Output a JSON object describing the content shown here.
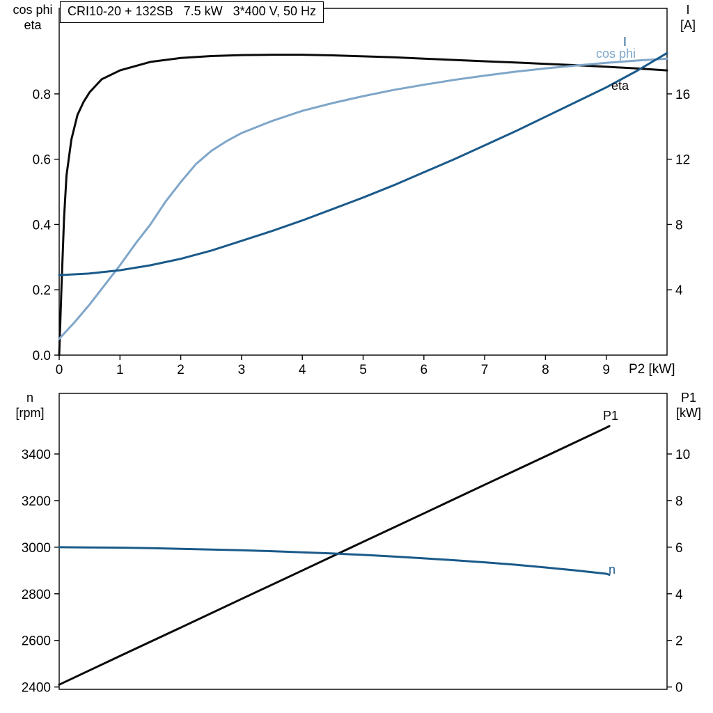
{
  "title_box": {
    "text": "CRI10-20 + 132SB   7.5 kW   3*400 V, 50 Hz"
  },
  "colors": {
    "black": "#0a0a0a",
    "dark_blue": "#1a5a8a",
    "light_blue": "#7fa6c9"
  },
  "axis_labels": {
    "top_left_1": "cos phi",
    "top_left_2": "eta",
    "top_right_1": "I",
    "top_right_2": "[A]",
    "x_label_top": "P2 [kW]",
    "bottom_left_1": "n",
    "bottom_left_2": "[rpm]",
    "bottom_right_1": "P1",
    "bottom_right_2": "[kW]"
  },
  "curve_labels": {
    "I": "I",
    "cos_phi": "cos phi",
    "eta": "eta",
    "P1": "P1",
    "n": "n"
  },
  "chart_data": [
    {
      "type": "line",
      "id": "top",
      "title": "CRI10-20 + 132SB   7.5 kW   3*400 V, 50 Hz",
      "xlabel": "P2 [kW]",
      "ylabel_left": "cos phi / eta",
      "ylabel_right": "I [A]",
      "xlim": [
        0,
        10
      ],
      "ylim_left": [
        0,
        1.062
      ],
      "ylim_right": [
        0,
        21.24
      ],
      "grid": false,
      "legend_position": "curve-end-labels-right",
      "x_ticks": [
        {
          "v": 0,
          "t": "0"
        },
        {
          "v": 1,
          "t": "1"
        },
        {
          "v": 2,
          "t": "2"
        },
        {
          "v": 3,
          "t": "3"
        },
        {
          "v": 4,
          "t": "4"
        },
        {
          "v": 5,
          "t": "5"
        },
        {
          "v": 6,
          "t": "6"
        },
        {
          "v": 7,
          "t": "7"
        },
        {
          "v": 8,
          "t": "8"
        },
        {
          "v": 9,
          "t": "9"
        }
      ],
      "y_ticks_left": [
        {
          "v": 0.0,
          "t": "0.0"
        },
        {
          "v": 0.2,
          "t": "0.2"
        },
        {
          "v": 0.4,
          "t": "0.4"
        },
        {
          "v": 0.6,
          "t": "0.6"
        },
        {
          "v": 0.8,
          "t": "0.8"
        }
      ],
      "y_ticks_right": [
        {
          "v": 4,
          "t": "4"
        },
        {
          "v": 8,
          "t": "8"
        },
        {
          "v": 12,
          "t": "12"
        },
        {
          "v": 16,
          "t": "16"
        }
      ],
      "series": [
        {
          "name": "eta",
          "axis": "left",
          "color_key": "black",
          "points": [
            [
              0,
              0
            ],
            [
              0.04,
              0.22
            ],
            [
              0.08,
              0.42
            ],
            [
              0.12,
              0.55
            ],
            [
              0.2,
              0.66
            ],
            [
              0.3,
              0.735
            ],
            [
              0.4,
              0.775
            ],
            [
              0.5,
              0.805
            ],
            [
              0.7,
              0.845
            ],
            [
              1.0,
              0.872
            ],
            [
              1.5,
              0.898
            ],
            [
              2,
              0.91
            ],
            [
              2.5,
              0.916
            ],
            [
              3,
              0.919
            ],
            [
              3.5,
              0.92
            ],
            [
              4,
              0.92
            ],
            [
              4.5,
              0.918
            ],
            [
              5,
              0.915
            ],
            [
              5.5,
              0.912
            ],
            [
              6,
              0.908
            ],
            [
              6.5,
              0.904
            ],
            [
              7,
              0.9
            ],
            [
              7.5,
              0.896
            ],
            [
              8,
              0.892
            ],
            [
              8.5,
              0.888
            ],
            [
              9,
              0.883
            ],
            [
              9.5,
              0.878
            ],
            [
              10,
              0.872
            ]
          ]
        },
        {
          "name": "cos-phi",
          "axis": "left",
          "color_key": "light_blue",
          "points": [
            [
              0,
              0.05
            ],
            [
              0.25,
              0.1
            ],
            [
              0.5,
              0.155
            ],
            [
              0.75,
              0.215
            ],
            [
              1,
              0.275
            ],
            [
              1.25,
              0.34
            ],
            [
              1.5,
              0.4
            ],
            [
              1.75,
              0.47
            ],
            [
              2,
              0.53
            ],
            [
              2.25,
              0.585
            ],
            [
              2.5,
              0.625
            ],
            [
              2.75,
              0.655
            ],
            [
              3,
              0.68
            ],
            [
              3.5,
              0.717
            ],
            [
              4,
              0.748
            ],
            [
              4.5,
              0.772
            ],
            [
              5,
              0.793
            ],
            [
              5.5,
              0.812
            ],
            [
              6,
              0.828
            ],
            [
              6.5,
              0.843
            ],
            [
              7,
              0.856
            ],
            [
              7.5,
              0.868
            ],
            [
              8,
              0.878
            ],
            [
              8.5,
              0.887
            ],
            [
              9,
              0.895
            ],
            [
              9.5,
              0.902
            ],
            [
              10,
              0.908
            ]
          ]
        },
        {
          "name": "current-I",
          "axis": "right",
          "color_key": "dark_blue",
          "points": [
            [
              0,
              4.9
            ],
            [
              0.5,
              5.0
            ],
            [
              1,
              5.2
            ],
            [
              1.5,
              5.5
            ],
            [
              2,
              5.9
            ],
            [
              2.5,
              6.4
            ],
            [
              3,
              7.0
            ],
            [
              3.5,
              7.6
            ],
            [
              4,
              8.25
            ],
            [
              4.5,
              8.95
            ],
            [
              5,
              9.65
            ],
            [
              5.5,
              10.4
            ],
            [
              6,
              11.2
            ],
            [
              6.5,
              12.0
            ],
            [
              7,
              12.85
            ],
            [
              7.5,
              13.7
            ],
            [
              8,
              14.6
            ],
            [
              8.5,
              15.5
            ],
            [
              9,
              16.4
            ],
            [
              9.5,
              17.4
            ],
            [
              10,
              18.5
            ]
          ]
        }
      ]
    },
    {
      "type": "line",
      "id": "bottom",
      "title": "",
      "xlabel": "",
      "ylabel_left": "n [rpm]",
      "ylabel_right": "P1 [kW]",
      "xlim": [
        0,
        10
      ],
      "ylim_left": [
        2390,
        3660
      ],
      "ylim_right": [
        -0.1,
        12.6
      ],
      "grid": false,
      "legend_position": "curve-end-labels-right",
      "x_ticks": [],
      "y_ticks_left": [
        {
          "v": 2400,
          "t": "2400"
        },
        {
          "v": 2600,
          "t": "2600"
        },
        {
          "v": 2800,
          "t": "2800"
        },
        {
          "v": 3000,
          "t": "3000"
        },
        {
          "v": 3200,
          "t": "3200"
        },
        {
          "v": 3400,
          "t": "3400"
        }
      ],
      "y_ticks_right": [
        {
          "v": 0,
          "t": "0"
        },
        {
          "v": 2,
          "t": "2"
        },
        {
          "v": 4,
          "t": "4"
        },
        {
          "v": 6,
          "t": "6"
        },
        {
          "v": 8,
          "t": "8"
        },
        {
          "v": 10,
          "t": "10"
        }
      ],
      "series": [
        {
          "name": "P1",
          "axis": "right",
          "color_key": "black",
          "points": [
            [
              0,
              0.1
            ],
            [
              1,
              1.33
            ],
            [
              2,
              2.55
            ],
            [
              3,
              3.78
            ],
            [
              4,
              5.0
            ],
            [
              5,
              6.23
            ],
            [
              6,
              7.45
            ],
            [
              7,
              8.68
            ],
            [
              8,
              9.9
            ],
            [
              9,
              11.13
            ],
            [
              9.05,
              11.2
            ]
          ]
        },
        {
          "name": "speed-n",
          "axis": "left",
          "color_key": "dark_blue",
          "points": [
            [
              0,
              3000
            ],
            [
              0.5,
              2999
            ],
            [
              1,
              2998
            ],
            [
              1.5,
              2996
            ],
            [
              2,
              2993
            ],
            [
              2.5,
              2990
            ],
            [
              3,
              2987
            ],
            [
              3.5,
              2983
            ],
            [
              4,
              2978
            ],
            [
              4.5,
              2973
            ],
            [
              5,
              2967
            ],
            [
              5.5,
              2960
            ],
            [
              6,
              2952
            ],
            [
              6.5,
              2944
            ],
            [
              7,
              2935
            ],
            [
              7.5,
              2925
            ],
            [
              8,
              2913
            ],
            [
              8.5,
              2900
            ],
            [
              9,
              2886
            ],
            [
              9.05,
              2882
            ]
          ]
        }
      ]
    }
  ]
}
